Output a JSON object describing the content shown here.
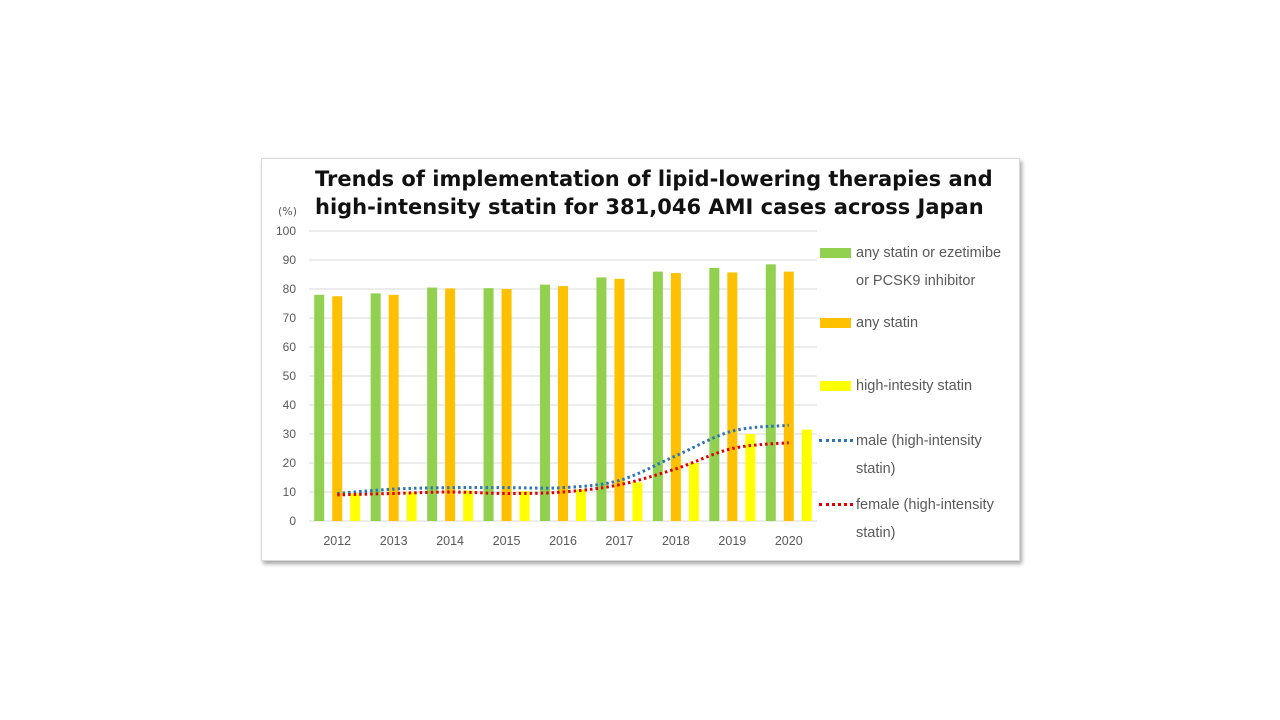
{
  "chart_data": {
    "type": "bar",
    "title_lines": [
      "Trends of implementation of lipid-lowering therapies and",
      "high-intensity statin for 381,046 AMI cases across Japan"
    ],
    "ylabel": "(%)",
    "xlabel": "",
    "ylim": [
      0,
      100
    ],
    "yticks": [
      0,
      10,
      20,
      30,
      40,
      50,
      60,
      70,
      80,
      90,
      100
    ],
    "grid": true,
    "legend_position": "right",
    "categories": [
      "2012",
      "2013",
      "2014",
      "2015",
      "2016",
      "2017",
      "2018",
      "2019",
      "2020"
    ],
    "series": [
      {
        "name": "any statin or ezetimibe or PCSK9 inhibitor",
        "legend_lines": [
          "any statin or ezetimibe",
          "or PCSK9 inhibitor"
        ],
        "kind": "bar",
        "color": "#92d050",
        "values": [
          78,
          78.5,
          80.5,
          80.3,
          81.5,
          84,
          86,
          87.3,
          88.5
        ]
      },
      {
        "name": "any statin",
        "legend_lines": [
          "any statin"
        ],
        "kind": "bar",
        "color": "#ffc000",
        "values": [
          77.5,
          78,
          80.2,
          80,
          81,
          83.5,
          85.5,
          85.7,
          86
        ]
      },
      {
        "name": "high-intesity statin",
        "legend_lines": [
          "high-intesity statin"
        ],
        "kind": "bar",
        "color": "#ffff00",
        "values": [
          9.5,
          10,
          10.5,
          10.3,
          10.8,
          13.3,
          20,
          30,
          31.5
        ]
      },
      {
        "name": "male (high-intensity statin)",
        "legend_lines": [
          "male (high-intensity",
          "statin)"
        ],
        "kind": "line",
        "color": "#2e75b6",
        "values": [
          9.5,
          11,
          11.5,
          11.5,
          11.5,
          14,
          22.5,
          31,
          33
        ]
      },
      {
        "name": "female (high-intensity statin)",
        "legend_lines": [
          "female (high-intensity",
          "statin)"
        ],
        "kind": "line",
        "color": "#e00000",
        "values": [
          9,
          9.5,
          10,
          9.5,
          10,
          12.5,
          18,
          25,
          27
        ]
      }
    ]
  },
  "colors": {
    "grid": "#d9d9d9",
    "tick_text": "#595959",
    "title_text": "#111111"
  }
}
